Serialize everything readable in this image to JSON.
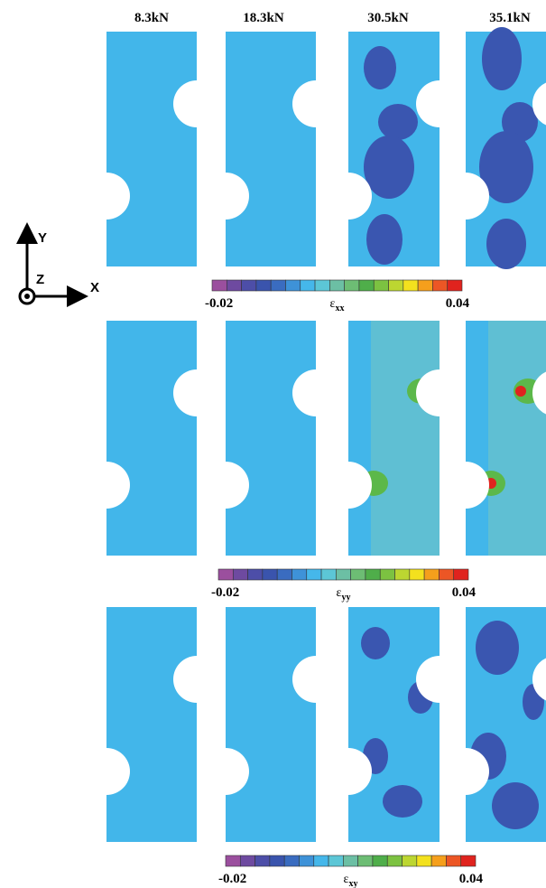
{
  "columns": [
    "8.3kN",
    "18.3kN",
    "30.5kN",
    "35.1kN"
  ],
  "axes": {
    "y": "Y",
    "z": "Z",
    "x": "X"
  },
  "rows": [
    {
      "symbol": "ε",
      "subscript": "xx",
      "min": "-0.02",
      "max": "0.04"
    },
    {
      "symbol": "ε",
      "subscript": "yy",
      "min": "-0.02",
      "max": "0.04"
    },
    {
      "symbol": "ε",
      "subscript": "xy",
      "min": "-0.02",
      "max": "0.04"
    }
  ],
  "colorbar_colors": [
    "#9b4f9e",
    "#6e4aa0",
    "#4d4ea8",
    "#3a54ad",
    "#3a6cc0",
    "#3e92d8",
    "#45b7ea",
    "#5cc6d6",
    "#6cbfa4",
    "#6dbd74",
    "#4fae4a",
    "#7cc241",
    "#bcd631",
    "#f3e11e",
    "#f59f1c",
    "#ec5625",
    "#e0231e"
  ]
}
